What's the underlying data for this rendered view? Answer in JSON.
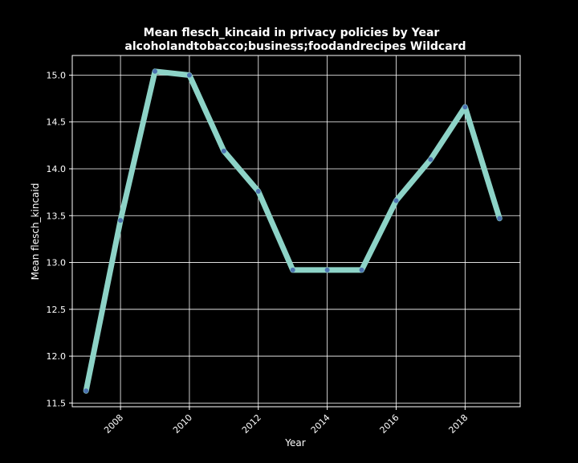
{
  "chart_data": {
    "type": "line",
    "title": "Mean flesch_kincaid in privacy policies by Year",
    "subtitle": "alcoholandtobacco;business;foodandrecipes Wildcard",
    "xlabel": "Year",
    "ylabel": "Mean flesch_kincaid",
    "x": [
      2007,
      2008,
      2009,
      2010,
      2011,
      2012,
      2013,
      2014,
      2015,
      2016,
      2017,
      2018,
      2019
    ],
    "series": [
      {
        "values": [
          11.63,
          13.45,
          15.04,
          15.0,
          14.19,
          13.76,
          12.92,
          12.92,
          12.92,
          13.66,
          14.1,
          14.66,
          13.47
        ]
      }
    ],
    "xlim": [
      2006.6,
      2019.6
    ],
    "ylim": [
      11.46,
      15.21
    ],
    "xticks": [
      "2008",
      "2010",
      "2012",
      "2014",
      "2016",
      "2018"
    ],
    "yticks": [
      "11.5",
      "12.0",
      "12.5",
      "13.0",
      "13.5",
      "14.0",
      "14.5",
      "15.0"
    ],
    "grid": true,
    "colors": {
      "background": "#000000",
      "line": "#8dd3c7",
      "marker": "#4c72b0",
      "text": "#ffffff"
    }
  }
}
